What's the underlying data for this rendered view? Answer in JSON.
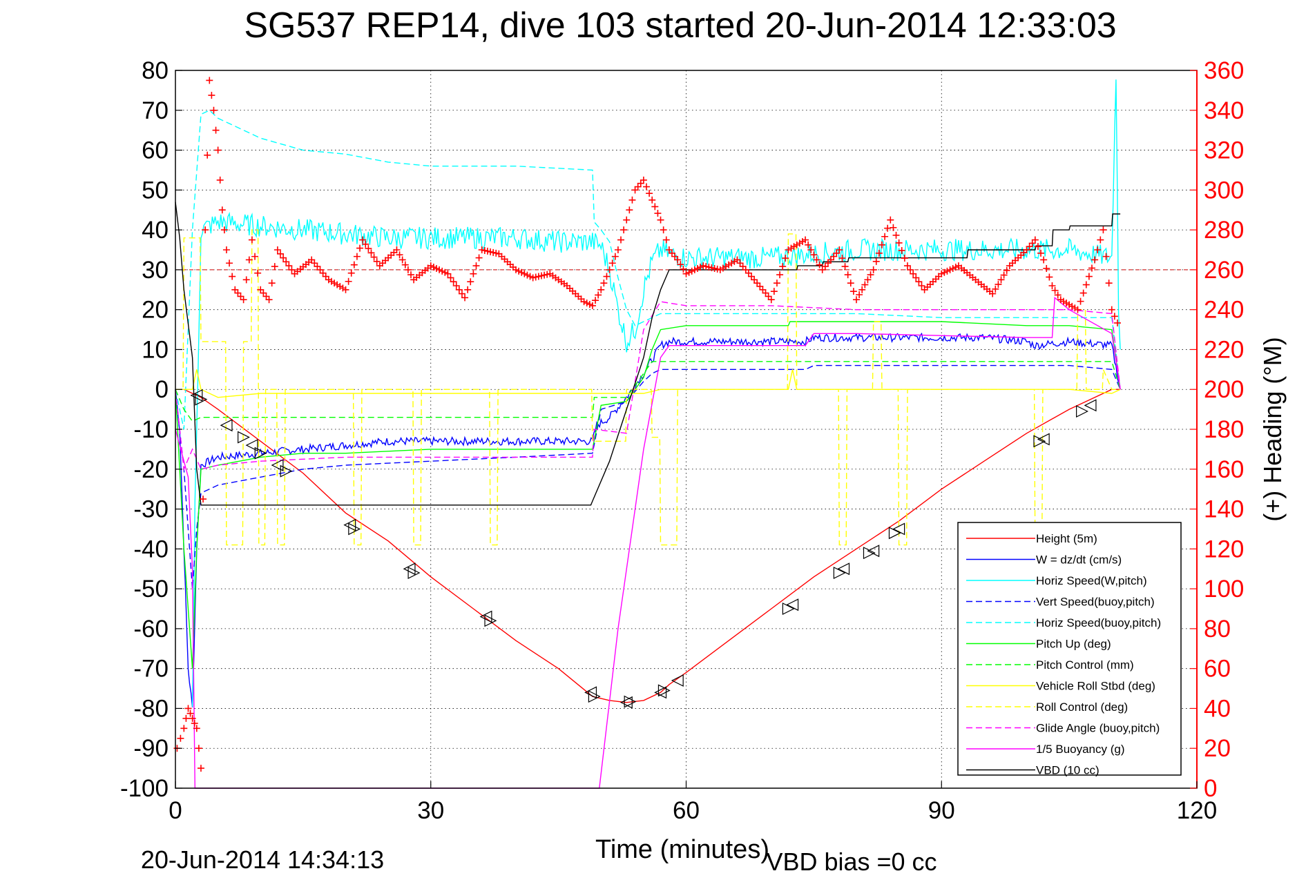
{
  "chart_data": {
    "type": "line",
    "title": "SG537 REP14, dive 103 started 20-Jun-2014 12:33:03",
    "xlabel": "Time (minutes)",
    "ylabel_right": "(+) Heading (°M)",
    "footer_left": "20-Jun-2014 14:34:13",
    "footer_right": "VBD bias =0 cc",
    "xlim": [
      0,
      120
    ],
    "ylim": [
      -100,
      80
    ],
    "ylim_right": [
      0,
      360
    ],
    "x_ticks": [
      0,
      30,
      60,
      90,
      120
    ],
    "y_ticks": [
      80,
      70,
      60,
      50,
      40,
      30,
      20,
      10,
      0,
      -10,
      -20,
      -30,
      -40,
      -50,
      -60,
      -70,
      -80,
      -90,
      -100
    ],
    "y_ticks_right": [
      360,
      340,
      320,
      300,
      280,
      260,
      240,
      220,
      200,
      180,
      160,
      140,
      120,
      100,
      80,
      60,
      40,
      20,
      0
    ],
    "grid": true,
    "legend_position": "bottom-right",
    "colors": {
      "heading": "#ff0000",
      "right_axis": "#ff0000",
      "height": "#ff0000",
      "w": "#0000ff",
      "horiz_speed_pitch": "#00ffff",
      "vert_speed_buoy": "#0000ff",
      "horiz_speed_buoy": "#00ffff",
      "pitch_up": "#00ff00",
      "pitch_control": "#00ff00",
      "roll": "#ffff00",
      "roll_control": "#ffff00",
      "glide_angle": "#ff00ff",
      "buoyancy": "#ff00ff",
      "vbd": "#000000",
      "markers": "#000000"
    },
    "series": [
      {
        "name": "Height (5m)",
        "color": "#ff0000",
        "dash": "solid",
        "x": [
          0,
          1,
          2,
          3,
          5,
          10,
          15,
          20,
          25,
          30,
          35,
          40,
          45,
          49,
          51,
          53,
          55,
          57,
          58,
          60,
          65,
          70,
          75,
          80,
          85,
          90,
          95,
          100,
          105,
          110,
          111
        ],
        "y": [
          0,
          0,
          -1,
          -2,
          -5,
          -13,
          -21,
          -31,
          -38,
          -47,
          -55,
          -63,
          -70,
          -77,
          -78,
          -78.5,
          -78,
          -76,
          -74,
          -71,
          -63,
          -55,
          -47,
          -40,
          -33,
          -25,
          -18,
          -11,
          -5,
          0,
          0
        ]
      },
      {
        "name": "W = dz/dt (cm/s)",
        "color": "#0000ff",
        "dash": "solid",
        "x": [
          0,
          0.5,
          1,
          1.5,
          2,
          2.5,
          3,
          5,
          10,
          15,
          20,
          25,
          30,
          35,
          40,
          45,
          49,
          49.5,
          51,
          53,
          55,
          57,
          58,
          60,
          65,
          70,
          74,
          75,
          80,
          85,
          90,
          95,
          100,
          101,
          105,
          110,
          111
        ],
        "y": [
          0,
          -10,
          -40,
          -70,
          -80,
          -40,
          -19,
          -17,
          -16,
          -15,
          -14,
          -13,
          -13,
          -13,
          -13,
          -13,
          -13,
          -9,
          -7,
          -2,
          4,
          11,
          12,
          12,
          12,
          12,
          12,
          13,
          13,
          13,
          13,
          13,
          12,
          11,
          12,
          11,
          0
        ],
        "noise": 1.0
      },
      {
        "name": "Horiz Speed(W,pitch)",
        "color": "#00ffff",
        "dash": "solid",
        "x": [
          2,
          2.3,
          3,
          5,
          10,
          15,
          20,
          25,
          30,
          35,
          40,
          45,
          49,
          50,
          51,
          52,
          53,
          54,
          55,
          56,
          57,
          58,
          60,
          65,
          70,
          75,
          80,
          85,
          90,
          95,
          100,
          105,
          110,
          110.5,
          110.8,
          111
        ],
        "y": [
          -80,
          -30,
          40,
          42,
          41,
          40,
          39,
          38,
          38,
          38,
          38,
          37,
          37,
          36,
          30,
          20,
          12,
          15,
          25,
          32,
          35,
          34,
          33,
          33,
          33,
          34,
          35,
          35,
          35,
          35,
          35,
          35,
          33,
          80,
          20,
          10
        ],
        "noise": 2.8
      },
      {
        "name": "Vert Speed(buoy,pitch)",
        "color": "#0000ff",
        "dash": "dashed",
        "x": [
          0,
          1,
          2,
          2.5,
          3,
          5,
          10,
          15,
          20,
          30,
          40,
          49,
          50,
          53,
          55,
          56,
          57,
          60,
          65,
          70,
          74,
          75,
          80,
          90,
          100,
          101,
          105,
          110,
          111
        ],
        "y": [
          0,
          -20,
          -50,
          -35,
          -26,
          -24,
          -22,
          -20,
          -19,
          -18,
          -17,
          -16,
          -5,
          -3,
          2,
          4,
          5,
          5,
          5,
          5,
          5,
          6,
          6,
          6,
          6,
          6,
          6,
          5,
          0
        ]
      },
      {
        "name": "Horiz Speed(buoy,pitch)",
        "color": "#00ffff",
        "dash": "dashed",
        "x": [
          0,
          1,
          2,
          3,
          4,
          5,
          10,
          15,
          20,
          25,
          30,
          40,
          49,
          49.2,
          50,
          51,
          52,
          53,
          54,
          55,
          56,
          57,
          60,
          70,
          80,
          90,
          100,
          105,
          110,
          111
        ],
        "y": [
          0,
          -10,
          40,
          69,
          70,
          68,
          63,
          60,
          59,
          57,
          56,
          56,
          55,
          42,
          40,
          37,
          28,
          20,
          16,
          17,
          18,
          19,
          19,
          19,
          19,
          18,
          18,
          18,
          18,
          0
        ]
      },
      {
        "name": "Pitch Up (deg)",
        "color": "#00ff00",
        "dash": "solid",
        "x": [
          0,
          1,
          2,
          2.5,
          3,
          5,
          10,
          15,
          20,
          30,
          40,
          49,
          50,
          53,
          55,
          56,
          57,
          60,
          70,
          72,
          72.2,
          80,
          90,
          100,
          105,
          110,
          111
        ],
        "y": [
          0,
          -40,
          -70,
          -40,
          -20,
          -19,
          -17,
          -16,
          -16,
          -15,
          -15,
          -15,
          -4,
          -3,
          3,
          10,
          15,
          16,
          16,
          16,
          17,
          17,
          17,
          16,
          16,
          15,
          0
        ]
      },
      {
        "name": "Pitch Control (mm)",
        "color": "#00ff00",
        "dash": "dashed",
        "x": [
          0,
          1,
          2,
          3,
          10,
          20,
          30,
          40,
          49,
          49.2,
          53,
          56,
          57,
          60,
          70,
          80,
          90,
          100,
          110,
          111
        ],
        "y": [
          0,
          -5,
          -8,
          -7,
          -7,
          -7,
          -7,
          -7,
          -7,
          -2,
          -2,
          7,
          7,
          7,
          7,
          7,
          7,
          7,
          7,
          0
        ]
      },
      {
        "name": "Vehicle Roll Stbd (deg)",
        "color": "#ffff00",
        "dash": "solid",
        "x": [
          0,
          2,
          2.5,
          3,
          5,
          10,
          20,
          30,
          40,
          49,
          50,
          53,
          55,
          57,
          60,
          70,
          72,
          72.5,
          73,
          80,
          90,
          100,
          105,
          110,
          111
        ],
        "y": [
          0,
          0,
          5,
          0,
          -2,
          -1,
          -1,
          -1,
          -1,
          -1,
          -1,
          -1,
          -1,
          0,
          0,
          0,
          0,
          5,
          0,
          0,
          0,
          0,
          0,
          -1,
          0
        ]
      },
      {
        "name": "Roll Control (deg)",
        "color": "#ffff00",
        "dash": "dashed",
        "x": [
          0,
          0.9,
          1,
          2,
          2.9,
          3,
          5.9,
          6,
          7,
          7.9,
          8,
          8.9,
          9,
          9.7,
          9.8,
          10.5,
          10.6,
          11,
          11.9,
          12,
          12.8,
          12.9,
          20.9,
          21,
          21.8,
          21.9,
          27.9,
          28,
          28.8,
          28.9,
          36.9,
          37,
          37.8,
          37.9,
          48.9,
          49,
          52.9,
          53,
          55.9,
          56,
          56.9,
          57,
          58.9,
          59,
          59.9,
          60,
          71.9,
          72,
          72.9,
          73,
          77.9,
          78,
          78.8,
          78.9,
          81.9,
          82,
          82.9,
          83,
          84.9,
          85,
          85.9,
          86,
          100.9,
          101,
          101.8,
          101.9,
          105.9,
          106,
          106.9,
          107,
          108.9,
          109,
          110,
          111
        ],
        "y": [
          0,
          0,
          38,
          38,
          38,
          12,
          12,
          -39,
          -39,
          -39,
          12,
          12,
          40,
          40,
          -39,
          -39,
          0,
          0,
          0,
          -39,
          -39,
          0,
          0,
          -39,
          -39,
          0,
          0,
          -39,
          -39,
          0,
          0,
          -39,
          -39,
          0,
          0,
          -13,
          -13,
          0,
          0,
          -12,
          -12,
          -39,
          -39,
          0,
          0,
          0,
          0,
          39,
          39,
          0,
          0,
          -39,
          -39,
          0,
          0,
          17,
          17,
          0,
          0,
          -39,
          -39,
          0,
          0,
          -39,
          -39,
          0,
          0,
          20,
          20,
          0,
          0,
          5,
          0,
          0
        ]
      },
      {
        "name": "Glide Angle (buoy,pitch)",
        "color": "#ff00ff",
        "dash": "dashed",
        "x": [
          0,
          1,
          2,
          3,
          5,
          10,
          20,
          30,
          40,
          49,
          49.2,
          53,
          55,
          57,
          60,
          70,
          80,
          90,
          100,
          105,
          110,
          111
        ],
        "y": [
          0,
          -20,
          -15,
          -20,
          -19,
          -18,
          -17,
          -17,
          -17,
          -17,
          -10,
          -11,
          15,
          22,
          21,
          21,
          20,
          20,
          20,
          20,
          19,
          0
        ]
      },
      {
        "name": "1/5 Buoyancy (g)",
        "color": "#ff00ff",
        "dash": "solid",
        "x": [
          0,
          1,
          1.5,
          2,
          2.3,
          49.8,
          52,
          55,
          57,
          58,
          60,
          70,
          74,
          75,
          80,
          100,
          103,
          103.3,
          105,
          110,
          111
        ],
        "y": [
          -10,
          -18,
          -22,
          -45,
          -100,
          -100,
          -60,
          -15,
          8,
          11,
          11,
          11,
          11,
          14,
          14,
          13,
          13,
          23,
          20,
          14,
          0
        ]
      },
      {
        "name": "VBD (10 cc)",
        "color": "#000000",
        "dash": "solid",
        "x": [
          0,
          0.5,
          1,
          2,
          2.5,
          3,
          48.8,
          49,
          51,
          53,
          55,
          56,
          57,
          58,
          60,
          70,
          73,
          73.1,
          76,
          76.1,
          79,
          79.1,
          93,
          93.1,
          101,
          101.1,
          103,
          103.1,
          105,
          105.1,
          110,
          110.1,
          111
        ],
        "y": [
          47,
          38,
          25,
          8,
          -20,
          -29,
          -29,
          -28,
          -18,
          -5,
          8,
          18,
          25,
          30,
          30,
          30,
          30,
          31,
          31,
          32,
          32,
          33,
          33,
          35,
          35,
          36,
          36,
          40,
          40,
          41,
          41,
          44,
          44
        ]
      }
    ],
    "heading": {
      "name": "Heading",
      "color": "#ff0000",
      "marker": "+",
      "x": [
        0.2,
        1,
        1.5,
        2,
        2.5,
        3,
        3.5,
        4,
        4.5,
        5,
        5.5,
        6,
        7,
        8,
        9,
        10,
        11,
        12,
        14,
        16,
        18,
        20,
        22,
        24,
        26,
        28,
        30,
        32,
        34,
        36,
        38,
        40,
        42,
        44,
        46,
        48,
        49,
        50,
        52,
        54,
        55,
        56,
        57,
        58,
        59,
        60,
        62,
        64,
        66,
        68,
        70,
        72,
        74,
        76,
        78,
        80,
        82,
        84,
        86,
        88,
        90,
        92,
        94,
        96,
        98,
        100,
        101,
        102,
        103,
        104,
        106,
        108,
        109,
        110,
        111
      ],
      "y": [
        20,
        30,
        40,
        35,
        30,
        10,
        280,
        355,
        340,
        320,
        290,
        270,
        250,
        245,
        275,
        250,
        245,
        270,
        258,
        265,
        255,
        250,
        275,
        262,
        270,
        255,
        262,
        258,
        246,
        270,
        268,
        260,
        256,
        258,
        252,
        244,
        242,
        250,
        270,
        300,
        305,
        295,
        285,
        270,
        265,
        258,
        262,
        260,
        265,
        255,
        245,
        270,
        275,
        260,
        270,
        245,
        260,
        285,
        262,
        250,
        258,
        262,
        255,
        248,
        262,
        270,
        275,
        265,
        252,
        245,
        240,
        265,
        280,
        240,
        230
      ]
    },
    "markers": {
      "name": "dive markers",
      "shape": "triangle",
      "x": [
        2.5,
        3,
        6,
        8,
        9,
        10,
        12,
        13,
        20.5,
        21,
        27.5,
        28,
        36.5,
        37,
        48.8,
        49.2,
        53,
        53.4,
        57,
        57.4,
        59,
        72,
        72.5,
        78,
        78.5,
        81.5,
        82,
        84.5,
        85,
        101.5,
        102,
        106.5,
        107.5
      ],
      "y": [
        -1.5,
        -2.5,
        -9,
        -12,
        -14,
        -16,
        -19,
        -20.5,
        -34,
        -35,
        -45,
        -46,
        -57,
        -58,
        -76,
        -77,
        -78.5,
        -78.3,
        -76,
        -75.5,
        -73,
        -55,
        -54,
        -46,
        -45,
        -41,
        -40.5,
        -36,
        -35,
        -13,
        -12.5,
        -5.5,
        -4
      ]
    },
    "reference_line_right": 260
  }
}
